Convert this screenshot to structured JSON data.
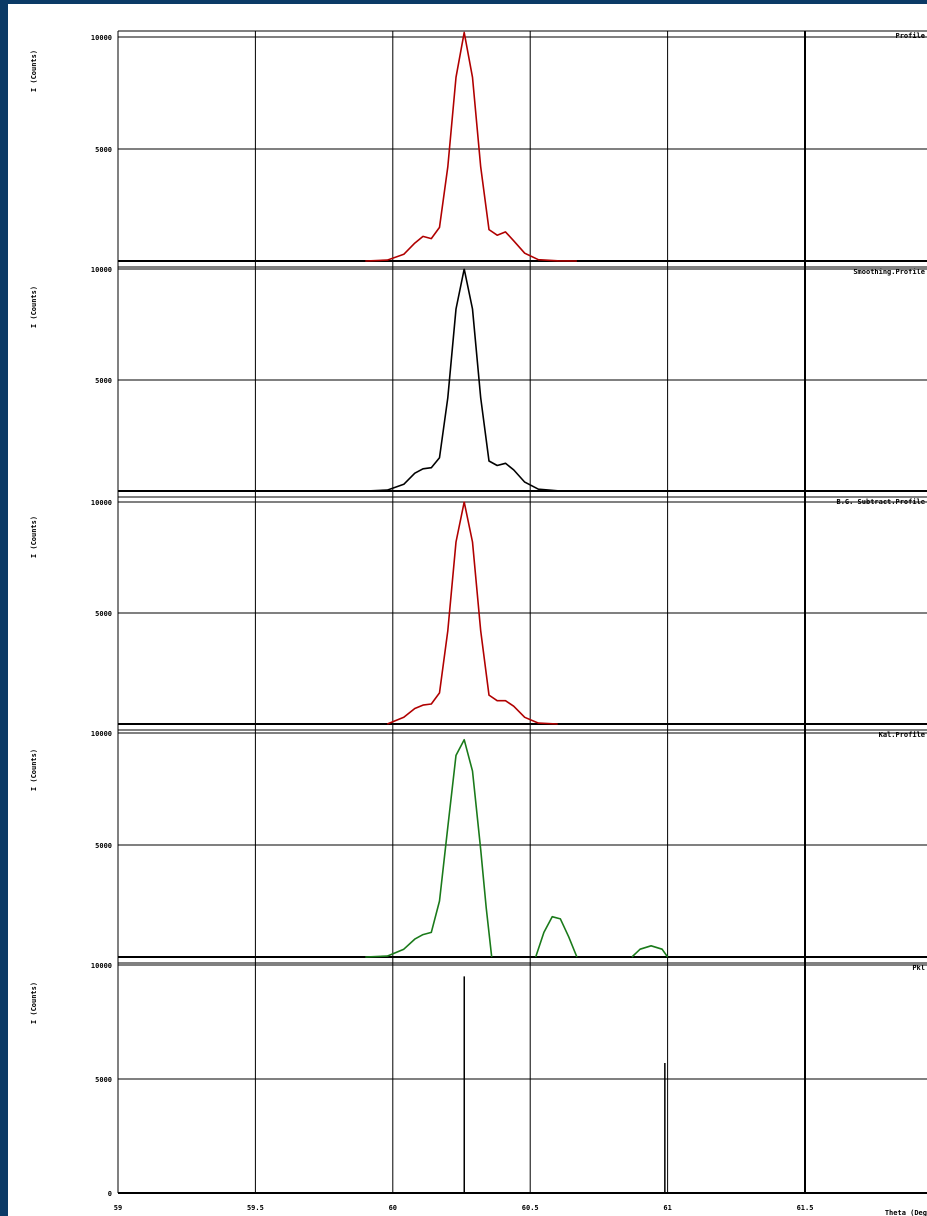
{
  "colors": {
    "background": "#0b3a66",
    "panel": "#ffffff",
    "grid": "#000000",
    "trace_red": "#b00000",
    "trace_green": "#1a7a1a",
    "trace_black": "#000000"
  },
  "chart_data": {
    "type": "line",
    "xlabel": "Theta (Deg",
    "xlim": [
      59,
      61.9
    ],
    "x_ticks": [
      59,
      59.5,
      60,
      60.5,
      61,
      61.5
    ],
    "x_tick_labels": [
      "59",
      "59.5",
      "60",
      "60.5",
      "61",
      "61.5"
    ],
    "grid": true,
    "panels": [
      {
        "title": "Profile",
        "ylabel": "I (Counts)",
        "ylim": [
          0,
          10200
        ],
        "y_ticks": [
          5000,
          10000
        ],
        "y_tick_labels": [
          "5000",
          "10000"
        ],
        "series": [
          {
            "color": "#b00000",
            "x": [
              59.9,
              59.98,
              60.04,
              60.08,
              60.11,
              60.14,
              60.17,
              60.2,
              60.23,
              60.26,
              60.29,
              60.32,
              60.35,
              60.38,
              60.41,
              60.44,
              60.48,
              60.53,
              60.6,
              60.67
            ],
            "y": [
              0,
              40,
              300,
              800,
              1100,
              1000,
              1500,
              4200,
              8200,
              10200,
              8200,
              4200,
              1400,
              1150,
              1300,
              900,
              350,
              60,
              10,
              0
            ]
          }
        ]
      },
      {
        "title": "Smoothing.Profile",
        "ylabel": "I (Counts)",
        "ylim": [
          0,
          10200
        ],
        "y_ticks": [
          5000,
          10000
        ],
        "y_tick_labels": [
          "5000",
          "10000"
        ],
        "series": [
          {
            "color": "#000000",
            "x": [
              59.9,
              59.98,
              60.04,
              60.08,
              60.11,
              60.14,
              60.17,
              60.2,
              60.23,
              60.26,
              60.29,
              60.32,
              60.35,
              60.38,
              60.41,
              60.44,
              60.48,
              60.53,
              60.6,
              60.7
            ],
            "y": [
              0,
              40,
              300,
              800,
              1000,
              1050,
              1500,
              4200,
              8200,
              10000,
              8200,
              4200,
              1350,
              1150,
              1250,
              950,
              400,
              80,
              10,
              0
            ]
          }
        ]
      },
      {
        "title": "B.G. Subtract.Profile",
        "ylabel": "I (Counts)",
        "ylim": [
          0,
          10200
        ],
        "y_ticks": [
          5000,
          10000
        ],
        "y_tick_labels": [
          "5000",
          "10000"
        ],
        "series": [
          {
            "color": "#b00000",
            "x": [
              59.98,
              60.04,
              60.08,
              60.11,
              60.14,
              60.17,
              60.2,
              60.23,
              60.26,
              60.29,
              60.32,
              60.35,
              60.38,
              60.41,
              60.44,
              60.48,
              60.53,
              60.6
            ],
            "y": [
              0,
              300,
              700,
              850,
              900,
              1400,
              4200,
              8200,
              10000,
              8200,
              4200,
              1300,
              1050,
              1050,
              800,
              300,
              40,
              0
            ]
          }
        ]
      },
      {
        "title": "Kal.Profile",
        "ylabel": "I (Counts)",
        "ylim": [
          0,
          10200
        ],
        "y_ticks": [
          5000,
          10000
        ],
        "y_tick_labels": [
          "5000",
          "10000"
        ],
        "series": [
          {
            "color": "#1a7a1a",
            "x": [
              59.9,
              59.98,
              60.04,
              60.08,
              60.11,
              60.14,
              60.17,
              60.2,
              60.23,
              60.26,
              60.29,
              60.32,
              60.34,
              60.36
            ],
            "y": [
              0,
              40,
              350,
              800,
              1000,
              1100,
              2500,
              5800,
              9000,
              9700,
              8300,
              4800,
              2200,
              0
            ]
          },
          {
            "color": "#1a7a1a",
            "x": [
              60.52,
              60.55,
              60.58,
              60.61,
              60.64,
              60.67
            ],
            "y": [
              0,
              1100,
              1800,
              1700,
              900,
              0
            ]
          },
          {
            "color": "#1a7a1a",
            "x": [
              60.87,
              60.9,
              60.94,
              60.98,
              61.0
            ],
            "y": [
              0,
              350,
              500,
              350,
              0
            ]
          }
        ]
      },
      {
        "title": "Pkl",
        "ylabel": "I (Counts)",
        "ylim": [
          0,
          10200
        ],
        "y_ticks": [
          0,
          5000,
          10000
        ],
        "y_tick_labels": [
          "0",
          "5000",
          "10000"
        ],
        "sticks": [
          {
            "x": 60.26,
            "y": 9500,
            "color": "#000000"
          },
          {
            "x": 60.99,
            "y": 5700,
            "color": "#000000"
          }
        ]
      }
    ]
  }
}
